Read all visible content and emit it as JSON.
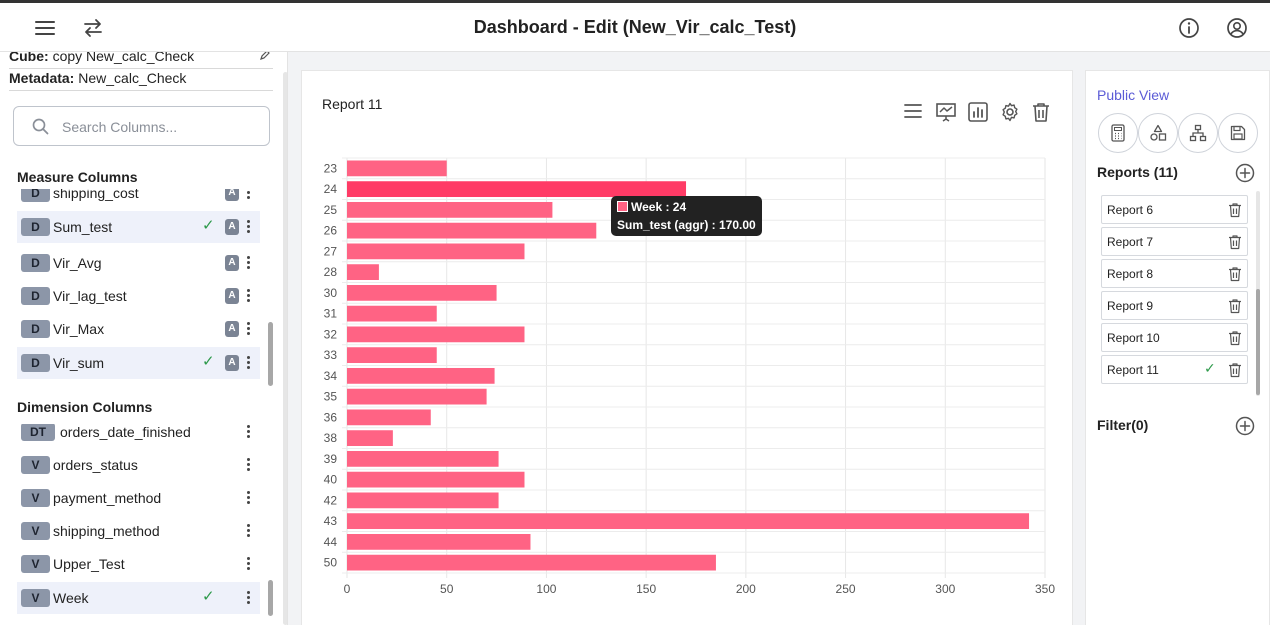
{
  "header": {
    "title": "Dashboard - Edit (New_Vir_calc_Test)"
  },
  "sidebar": {
    "cube_label": "Cube:",
    "cube_value": "copy New_calc_Check",
    "metadata_label": "Metadata:",
    "metadata_value": "New_calc_Check",
    "search_placeholder": "Search Columns...",
    "measure_title": "Measure Columns",
    "measures": [
      {
        "badge": "D",
        "label": "shipping_cost",
        "checked": false,
        "y": 130
      },
      {
        "badge": "D",
        "label": "Sum_test",
        "checked": true,
        "y": 159
      },
      {
        "badge": "D",
        "label": "Vir_Avg",
        "checked": false,
        "y": 195
      },
      {
        "badge": "D",
        "label": "Vir_lag_test",
        "checked": false,
        "y": 228
      },
      {
        "badge": "D",
        "label": "Vir_Max",
        "checked": false,
        "y": 261
      },
      {
        "badge": "D",
        "label": "Vir_sum",
        "checked": true,
        "y": 295
      }
    ],
    "measure_tag": "A",
    "dimension_title": "Dimension Columns",
    "dimensions": [
      {
        "badge": "DT",
        "label": "orders_date_finished",
        "checked": false
      },
      {
        "badge": "V",
        "label": "orders_status",
        "checked": false
      },
      {
        "badge": "V",
        "label": "payment_method",
        "checked": false
      },
      {
        "badge": "V",
        "label": "shipping_method",
        "checked": false
      },
      {
        "badge": "V",
        "label": "Upper_Test",
        "checked": false
      },
      {
        "badge": "V",
        "label": "Week",
        "checked": true
      }
    ]
  },
  "report": {
    "title": "Report 11",
    "tooltip": {
      "week_label": "Week : 24",
      "value_label": "Sum_test (aggr) : 170.00"
    }
  },
  "right_panel": {
    "public_view": "Public View",
    "reports_title": "Reports (11)",
    "reports": [
      {
        "label": "Report 6",
        "checked": false
      },
      {
        "label": "Report 7",
        "checked": false
      },
      {
        "label": "Report 8",
        "checked": false
      },
      {
        "label": "Report 9",
        "checked": false
      },
      {
        "label": "Report 10",
        "checked": false
      },
      {
        "label": "Report 11",
        "checked": true
      }
    ],
    "filter_title": "Filter(0)"
  },
  "chart_data": {
    "type": "bar",
    "orientation": "horizontal",
    "categories": [
      "23",
      "24",
      "25",
      "26",
      "27",
      "28",
      "30",
      "31",
      "32",
      "33",
      "34",
      "35",
      "36",
      "38",
      "39",
      "40",
      "42",
      "43",
      "44",
      "50"
    ],
    "series": [
      {
        "values": [
          50,
          170,
          103,
          125,
          89,
          16,
          75,
          45,
          89,
          45,
          74,
          70,
          42,
          23,
          76,
          89,
          76,
          342,
          92,
          185
        ]
      }
    ],
    "xlim": [
      0,
      350
    ],
    "x_ticks": [
      0,
      50,
      100,
      150,
      200,
      250,
      300,
      350
    ],
    "grid": true,
    "highlighted_category": "24",
    "bar_color": "#ff6384",
    "highlight_color": "#ff3b66"
  }
}
